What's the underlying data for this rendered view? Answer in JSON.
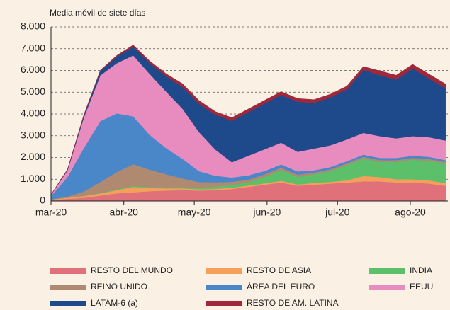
{
  "chart_data": {
    "type": "stacked_area",
    "subtitle": "Media móvil de siete días",
    "x": [
      0,
      7,
      14,
      21,
      28,
      35,
      42,
      49,
      56,
      63,
      70,
      77,
      84,
      91,
      98,
      105,
      112,
      119,
      126,
      133,
      140,
      147,
      154,
      161,
      168
    ],
    "xlim": [
      0,
      169
    ],
    "xticks": [
      {
        "value": 0,
        "label": "mar-20"
      },
      {
        "value": 31,
        "label": "abr-20"
      },
      {
        "value": 61,
        "label": "may-20"
      },
      {
        "value": 92,
        "label": "jun-20"
      },
      {
        "value": 122,
        "label": "jul-20"
      },
      {
        "value": 153,
        "label": "ago-20"
      }
    ],
    "ylim": [
      0,
      8000
    ],
    "yticks": [
      0,
      {
        "value": 1000,
        "label": "1.000"
      },
      {
        "value": 2000,
        "label": "2.000"
      },
      {
        "value": 3000,
        "label": "3.000"
      },
      {
        "value": 4000,
        "label": "4.000"
      },
      {
        "value": 5000,
        "label": "5.000"
      },
      {
        "value": 6000,
        "label": "6.000"
      },
      {
        "value": 7000,
        "label": "7.000"
      },
      {
        "value": 8000,
        "label": "8.000"
      }
    ],
    "grid": true,
    "series": [
      {
        "name": "RESTO DEL MUNDO",
        "color": "#e0707a",
        "values": [
          50,
          100,
          150,
          250,
          350,
          400,
          450,
          480,
          500,
          480,
          500,
          550,
          650,
          750,
          850,
          700,
          750,
          800,
          850,
          900,
          900,
          850,
          850,
          800,
          700
        ]
      },
      {
        "name": "RESTO DE ASIA",
        "color": "#f4a05a",
        "values": [
          20,
          50,
          80,
          100,
          150,
          250,
          150,
          100,
          80,
          60,
          60,
          60,
          60,
          60,
          80,
          60,
          80,
          80,
          100,
          250,
          200,
          150,
          150,
          150,
          120
        ]
      },
      {
        "name": "INDIA",
        "color": "#5cbf6a",
        "values": [
          0,
          0,
          10,
          20,
          30,
          40,
          40,
          50,
          60,
          80,
          100,
          120,
          150,
          300,
          500,
          350,
          400,
          500,
          700,
          800,
          700,
          800,
          900,
          900,
          900
        ]
      },
      {
        "name": "REINO UNIDO",
        "color": "#b08a70",
        "values": [
          10,
          50,
          200,
          500,
          800,
          1000,
          800,
          600,
          400,
          250,
          200,
          150,
          120,
          120,
          100,
          100,
          80,
          80,
          80,
          80,
          80,
          80,
          80,
          80,
          80
        ]
      },
      {
        "name": "ÁREA DEL EURO",
        "color": "#4a87c8",
        "values": [
          150,
          900,
          2000,
          2800,
          2700,
          2200,
          1600,
          1200,
          900,
          500,
          300,
          200,
          200,
          150,
          150,
          150,
          100,
          100,
          100,
          100,
          100,
          100,
          100,
          100,
          80
        ]
      },
      {
        "name": "EEUU",
        "color": "#e88cc0",
        "values": [
          50,
          300,
          1400,
          2100,
          2300,
          2800,
          2800,
          2600,
          2300,
          1800,
          1200,
          700,
          900,
          1000,
          1000,
          900,
          1000,
          1000,
          1000,
          1000,
          1000,
          900,
          900,
          900,
          900
        ]
      },
      {
        "name": "LATAM-6 (a)",
        "color": "#1e4a8c",
        "values": [
          10,
          30,
          100,
          200,
          300,
          400,
          500,
          700,
          1000,
          1300,
          1600,
          1900,
          2000,
          2100,
          2200,
          2300,
          2100,
          2200,
          2300,
          2900,
          2800,
          2700,
          3100,
          2700,
          2400
        ]
      },
      {
        "name": "RESTO DE AM. LATINA",
        "color": "#a0283a",
        "values": [
          10,
          20,
          30,
          40,
          60,
          80,
          100,
          120,
          150,
          150,
          150,
          150,
          150,
          150,
          150,
          150,
          150,
          150,
          150,
          150,
          200,
          200,
          200,
          200,
          200
        ]
      }
    ]
  }
}
